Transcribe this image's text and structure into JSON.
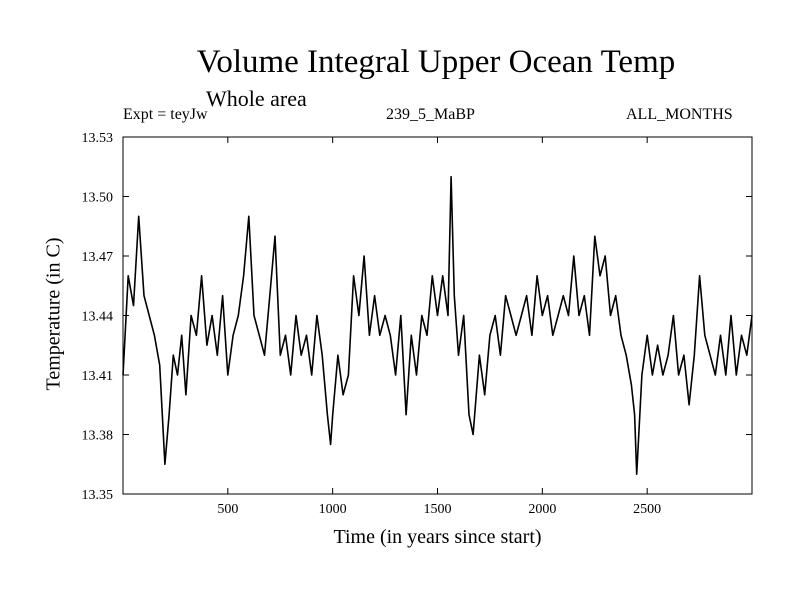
{
  "chart_data": {
    "type": "line",
    "title": "Volume Integral Upper Ocean Temp",
    "subtitle": "Whole area",
    "expt_label": "Expt = teyJw",
    "run_label": "239_5_MaBP",
    "months_label": "ALL_MONTHS",
    "xlabel": "Time (in years since start)",
    "ylabel": "Temperature (in C)",
    "xlim": [
      0,
      3000
    ],
    "ylim": [
      13.35,
      13.53
    ],
    "x_ticks": [
      "500",
      "1000",
      "1500",
      "2000",
      "2500"
    ],
    "y_ticks": [
      "13.35",
      "13.38",
      "13.41",
      "13.44",
      "13.47",
      "13.50",
      "13.53"
    ],
    "line_color": "#000000",
    "series": [
      {
        "name": "teyJw",
        "x": [
          0,
          25,
          50,
          75,
          100,
          125,
          150,
          175,
          200,
          220,
          240,
          260,
          280,
          300,
          325,
          350,
          375,
          400,
          425,
          450,
          475,
          500,
          525,
          550,
          575,
          600,
          625,
          650,
          675,
          700,
          725,
          750,
          775,
          800,
          825,
          850,
          875,
          900,
          925,
          950,
          975,
          990,
          1000,
          1025,
          1050,
          1075,
          1100,
          1125,
          1150,
          1175,
          1200,
          1225,
          1250,
          1275,
          1300,
          1325,
          1350,
          1375,
          1400,
          1425,
          1450,
          1475,
          1500,
          1525,
          1550,
          1565,
          1580,
          1600,
          1625,
          1650,
          1670,
          1700,
          1725,
          1750,
          1775,
          1800,
          1825,
          1850,
          1875,
          1900,
          1925,
          1950,
          1975,
          2000,
          2025,
          2050,
          2075,
          2100,
          2125,
          2150,
          2175,
          2200,
          2225,
          2250,
          2275,
          2300,
          2325,
          2350,
          2375,
          2400,
          2425,
          2440,
          2450,
          2475,
          2500,
          2525,
          2550,
          2575,
          2600,
          2625,
          2650,
          2675,
          2700,
          2725,
          2750,
          2775,
          2800,
          2825,
          2850,
          2875,
          2900,
          2925,
          2950,
          2975,
          3000
        ],
        "y": [
          13.41,
          13.46,
          13.445,
          13.49,
          13.45,
          13.44,
          13.43,
          13.415,
          13.365,
          13.39,
          13.42,
          13.41,
          13.43,
          13.4,
          13.44,
          13.43,
          13.46,
          13.425,
          13.44,
          13.42,
          13.45,
          13.41,
          13.43,
          13.44,
          13.46,
          13.49,
          13.44,
          13.43,
          13.42,
          13.45,
          13.48,
          13.42,
          13.43,
          13.41,
          13.44,
          13.42,
          13.43,
          13.41,
          13.44,
          13.42,
          13.39,
          13.375,
          13.39,
          13.42,
          13.4,
          13.41,
          13.46,
          13.44,
          13.47,
          13.43,
          13.45,
          13.43,
          13.44,
          13.43,
          13.41,
          13.44,
          13.39,
          13.43,
          13.41,
          13.44,
          13.43,
          13.46,
          13.44,
          13.46,
          13.44,
          13.51,
          13.45,
          13.42,
          13.44,
          13.39,
          13.38,
          13.42,
          13.4,
          13.43,
          13.44,
          13.42,
          13.45,
          13.44,
          13.43,
          13.44,
          13.45,
          13.43,
          13.46,
          13.44,
          13.45,
          13.43,
          13.44,
          13.45,
          13.44,
          13.47,
          13.44,
          13.45,
          13.43,
          13.48,
          13.46,
          13.47,
          13.44,
          13.45,
          13.43,
          13.42,
          13.405,
          13.39,
          13.36,
          13.41,
          13.43,
          13.41,
          13.425,
          13.41,
          13.42,
          13.44,
          13.41,
          13.42,
          13.395,
          13.42,
          13.46,
          13.43,
          13.42,
          13.41,
          13.43,
          13.41,
          13.44,
          13.41,
          13.43,
          13.42,
          13.44
        ]
      }
    ]
  }
}
